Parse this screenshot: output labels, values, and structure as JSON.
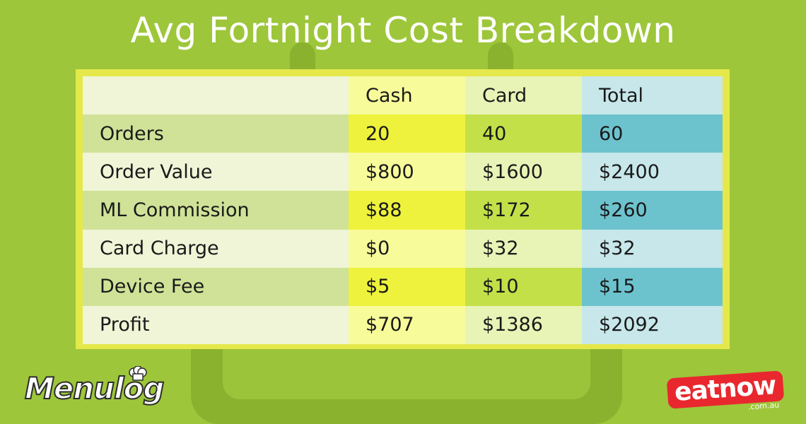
{
  "title": "Avg Fortnight Cost Breakdown",
  "table": {
    "headers": [
      "",
      "Cash",
      "Card",
      "Total"
    ],
    "rows": [
      {
        "label": "Orders",
        "cash": "20",
        "card": "40",
        "total": "60"
      },
      {
        "label": "Order Value",
        "cash": "$800",
        "card": "$1600",
        "total": "$2400"
      },
      {
        "label": "ML Commission",
        "cash": "$88",
        "card": "$172",
        "total": "$260"
      },
      {
        "label": "Card Charge",
        "cash": "$0",
        "card": "$32",
        "total": "$32"
      },
      {
        "label": "Device Fee",
        "cash": "$5",
        "card": "$10",
        "total": "$15"
      },
      {
        "label": "Profit",
        "cash": "$707",
        "card": "$1386",
        "total": "$2092"
      }
    ]
  },
  "logos": {
    "left": "Menulog",
    "right_main": "eatnow",
    "right_sub": ".com.au"
  },
  "colors": {
    "background": "#9dc63a",
    "table_border": "#e5e84b",
    "total_column_dark": "#6cc3ce",
    "eatnow_red": "#e8282e"
  },
  "icons": [
    "calendar-icon",
    "chef-hat-icon"
  ]
}
